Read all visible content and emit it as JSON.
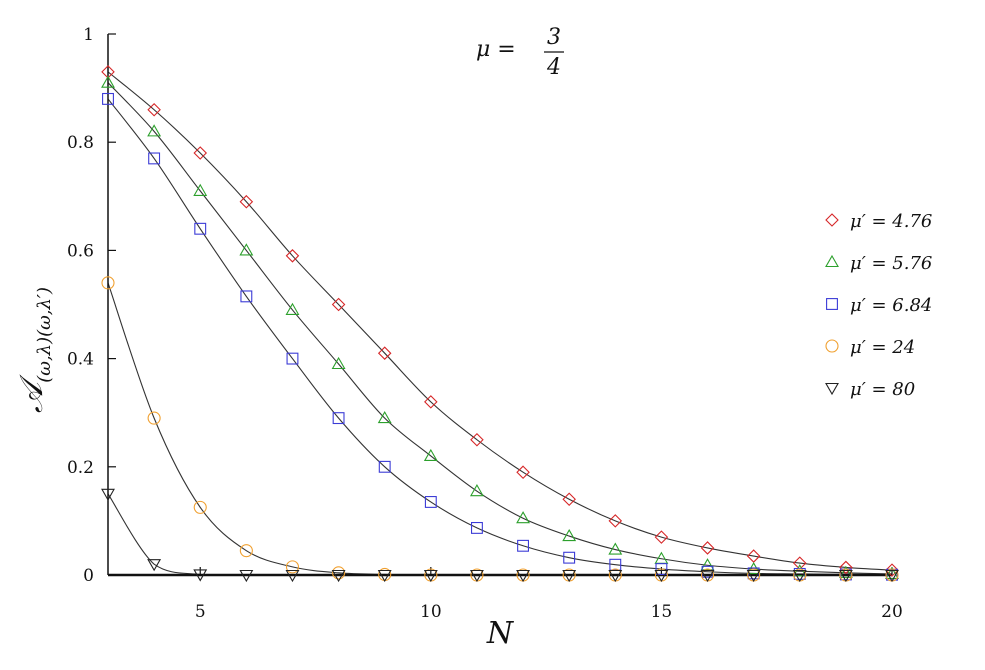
{
  "chart_data": {
    "type": "scatter",
    "title": "",
    "annotation": {
      "symbol": "μ",
      "equals": " = ",
      "numerator": "3",
      "denominator": "4"
    },
    "xlabel": "N",
    "ylabel": {
      "main": "𝒜",
      "subscript": "(ω,λ)(ω,λ′)"
    },
    "xlim": [
      3,
      20
    ],
    "ylim": [
      0,
      1
    ],
    "xticks": [
      5,
      10,
      15,
      20
    ],
    "yticks": [
      0,
      0.2,
      0.4,
      0.6,
      0.8,
      1
    ],
    "ytick_labels": [
      "0",
      "0.2",
      "0.4",
      "0.6",
      "0.8",
      "1"
    ],
    "grid": false,
    "legend_position": "right",
    "x": [
      3,
      4,
      5,
      6,
      7,
      8,
      9,
      10,
      11,
      12,
      13,
      14,
      15,
      16,
      17,
      18,
      19,
      20
    ],
    "series": [
      {
        "name": "μ′ = 4.76",
        "marker": "diamond",
        "color": "#d62728",
        "values": [
          0.93,
          0.86,
          0.78,
          0.69,
          0.59,
          0.5,
          0.41,
          0.32,
          0.25,
          0.19,
          0.14,
          0.1,
          0.07,
          0.05,
          0.035,
          0.022,
          0.014,
          0.009
        ]
      },
      {
        "name": "μ′ = 5.76",
        "marker": "triangle-up",
        "color": "#2ca02c",
        "values": [
          0.91,
          0.82,
          0.71,
          0.6,
          0.49,
          0.39,
          0.29,
          0.22,
          0.155,
          0.105,
          0.072,
          0.047,
          0.03,
          0.018,
          0.011,
          0.007,
          0.004,
          0.002
        ]
      },
      {
        "name": "μ′ = 6.84",
        "marker": "square",
        "color": "#3b3bd6",
        "values": [
          0.88,
          0.77,
          0.64,
          0.515,
          0.4,
          0.29,
          0.2,
          0.135,
          0.087,
          0.054,
          0.032,
          0.019,
          0.011,
          0.006,
          0.003,
          0.002,
          0.001,
          0.0005
        ]
      },
      {
        "name": "μ′ = 24",
        "marker": "circle",
        "color": "#f0a030",
        "values": [
          0.54,
          0.29,
          0.125,
          0.045,
          0.015,
          0.004,
          0.001,
          0,
          0,
          0,
          0,
          0,
          0,
          0,
          0,
          0,
          0,
          0
        ]
      },
      {
        "name": "μ′ = 80",
        "marker": "triangle-down",
        "color": "#222222",
        "values": [
          0.15,
          0.02,
          0.001,
          0,
          0,
          0,
          0,
          0,
          0,
          0,
          0,
          0,
          0,
          0,
          0,
          0,
          0,
          0
        ]
      }
    ]
  }
}
